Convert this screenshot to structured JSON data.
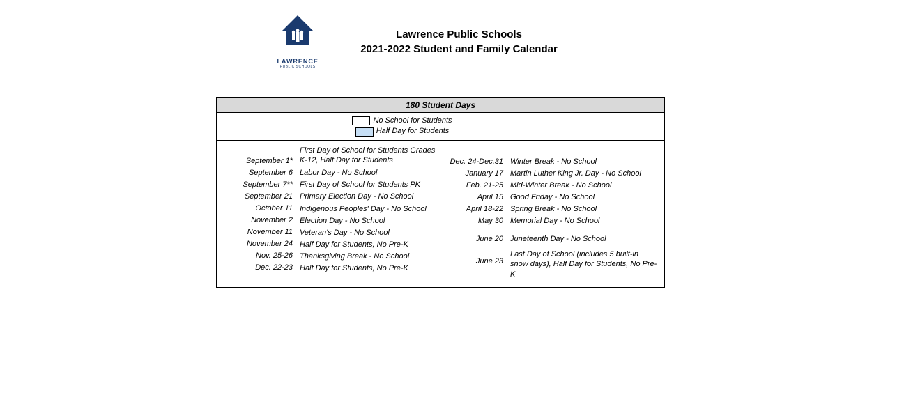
{
  "header": {
    "logo_text": "LAWRENCE",
    "logo_sub": "PUBLIC SCHOOLS",
    "title_line1": "Lawrence Public Schools",
    "title_line2": "2021-2022 Student and Family Calendar"
  },
  "banner": "180 Student Days",
  "legend": {
    "no_school": "No School for Students",
    "half_day": "Half Day for Students",
    "no_school_color": "#ffffff",
    "half_day_color": "#c7dff5"
  },
  "left": [
    {
      "date": "September 1*",
      "desc": "First Day of School for Students Grades K-12, Half Day for Students",
      "tall": true
    },
    {
      "date": "September 6",
      "desc": "Labor Day - No School"
    },
    {
      "date": "September 7**",
      "desc": "First Day of School for Students PK"
    },
    {
      "date": "September 21",
      "desc": "Primary Election Day - No School"
    },
    {
      "date": "October 11",
      "desc": "Indigenous Peoples' Day - No School"
    },
    {
      "date": "November 2",
      "desc": "Election Day - No School"
    },
    {
      "date": "November 11",
      "desc": "Veteran's Day - No School"
    },
    {
      "date": "November 24",
      "desc": "Half Day for Students, No Pre-K"
    },
    {
      "date": "Nov. 25-26",
      "desc": "Thanksgiving Break - No School"
    },
    {
      "date": "Dec. 22-23",
      "desc": "Half Day for Students, No Pre-K"
    }
  ],
  "right": [
    {
      "date": "Dec. 24-Dec.31",
      "desc": "Winter Break - No School"
    },
    {
      "date": "January 17",
      "desc": "Martin Luther King Jr. Day - No School"
    },
    {
      "date": "Feb. 21-25",
      "desc": "Mid-Winter Break - No School"
    },
    {
      "date": "April 15",
      "desc": "Good Friday - No School"
    },
    {
      "date": "April 18-22",
      "desc": "Spring Break - No School"
    },
    {
      "date": "May 30",
      "desc": "Memorial Day - No School"
    },
    {
      "date": "June 20",
      "desc": "Juneteenth Day - No School",
      "pad": true
    },
    {
      "date": "June 23",
      "desc": "Last Day of School (includes 5 built-in snow days), Half Day for Students, No Pre-K",
      "tall": true,
      "pad": true
    }
  ],
  "colors": {
    "banner_bg": "#d9d9d9",
    "border": "#000000",
    "logo": "#1a3a6e"
  }
}
